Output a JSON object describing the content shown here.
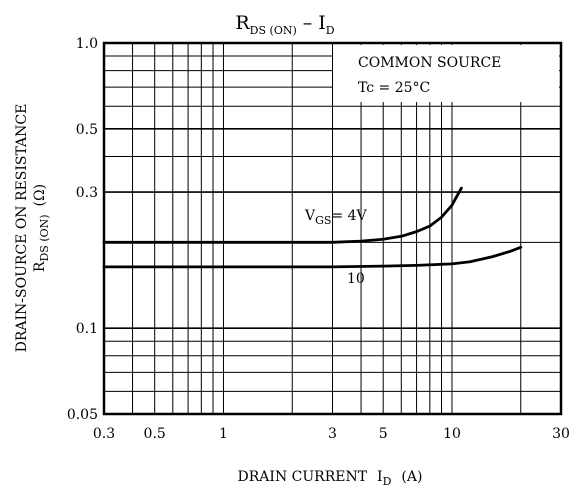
{
  "chart_data": {
    "type": "line",
    "title": "R",
    "title_sub": "DS (ON)",
    "title_tail": "– I",
    "title_tail_sub": "D",
    "xscale": "log",
    "yscale": "log",
    "xlim": [
      0.3,
      30
    ],
    "ylim": [
      0.05,
      1.0
    ],
    "x_ticks": [
      0.3,
      0.5,
      1,
      3,
      5,
      10,
      30
    ],
    "x_tick_labels": [
      "0.3",
      "0.5",
      "1",
      "3",
      "5",
      "10",
      "30"
    ],
    "y_ticks": [
      0.05,
      0.1,
      0.3,
      0.5,
      1.0
    ],
    "y_tick_labels": [
      "0.05",
      "0.1",
      "0.3",
      "0.5",
      "1.0"
    ],
    "grid": true,
    "xlabel": "DRAIN CURRENT",
    "xlabel_sym": "I",
    "xlabel_sym_sub": "D",
    "xlabel_unit": "(A)",
    "ylabel_line1": "DRAIN-SOURCE ON RESISTANCE",
    "ylabel_line2": "R",
    "ylabel_line2_sub": "DS (ON)",
    "ylabel_line2_unit": "(Ω)",
    "annotations": [
      "COMMON SOURCE",
      "Tc = 25°C"
    ],
    "series": [
      {
        "label_sym": "V",
        "label_sub": "GS",
        "label_tail": "= 4V",
        "x": [
          0.3,
          1,
          2,
          3,
          4,
          5,
          6,
          7,
          8,
          9,
          10,
          10.5,
          11
        ],
        "y": [
          0.2,
          0.2,
          0.2,
          0.2,
          0.202,
          0.205,
          0.21,
          0.218,
          0.228,
          0.245,
          0.27,
          0.29,
          0.31
        ]
      },
      {
        "label_sym": "10",
        "label_sub": "",
        "label_tail": "",
        "x": [
          0.3,
          1,
          3,
          5,
          7,
          10,
          12,
          15,
          18,
          20
        ],
        "y": [
          0.164,
          0.164,
          0.164,
          0.165,
          0.166,
          0.168,
          0.171,
          0.178,
          0.186,
          0.192
        ]
      }
    ]
  }
}
